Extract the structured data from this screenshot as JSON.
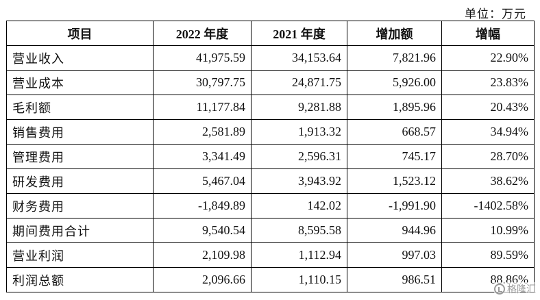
{
  "unit_note": "单位：万元",
  "table": {
    "headers": [
      "项目",
      "2022 年度",
      "2021 年度",
      "增加额",
      "增幅"
    ],
    "rows": [
      [
        "营业收入",
        "41,975.59",
        "34,153.64",
        "7,821.96",
        "22.90%"
      ],
      [
        "营业成本",
        "30,797.75",
        "24,871.75",
        "5,926.00",
        "23.83%"
      ],
      [
        "毛利额",
        "11,177.84",
        "9,281.88",
        "1,895.96",
        "20.43%"
      ],
      [
        "销售费用",
        "2,581.89",
        "1,913.32",
        "668.57",
        "34.94%"
      ],
      [
        "管理费用",
        "3,341.49",
        "2,596.31",
        "745.17",
        "28.70%"
      ],
      [
        "研发费用",
        "5,467.04",
        "3,943.92",
        "1,523.12",
        "38.62%"
      ],
      [
        "财务费用",
        "-1,849.89",
        "142.02",
        "-1,991.90",
        "-1402.58%"
      ],
      [
        "期间费用合计",
        "9,540.54",
        "8,595.58",
        "944.96",
        "10.99%"
      ],
      [
        "营业利润",
        "2,109.98",
        "1,112.94",
        "997.03",
        "89.59%"
      ],
      [
        "利润总额",
        "2,096.66",
        "1,110.15",
        "986.51",
        "88.86%"
      ]
    ]
  },
  "watermark": {
    "text": "格隆汇",
    "icon": "gelonghui-logo-icon"
  }
}
